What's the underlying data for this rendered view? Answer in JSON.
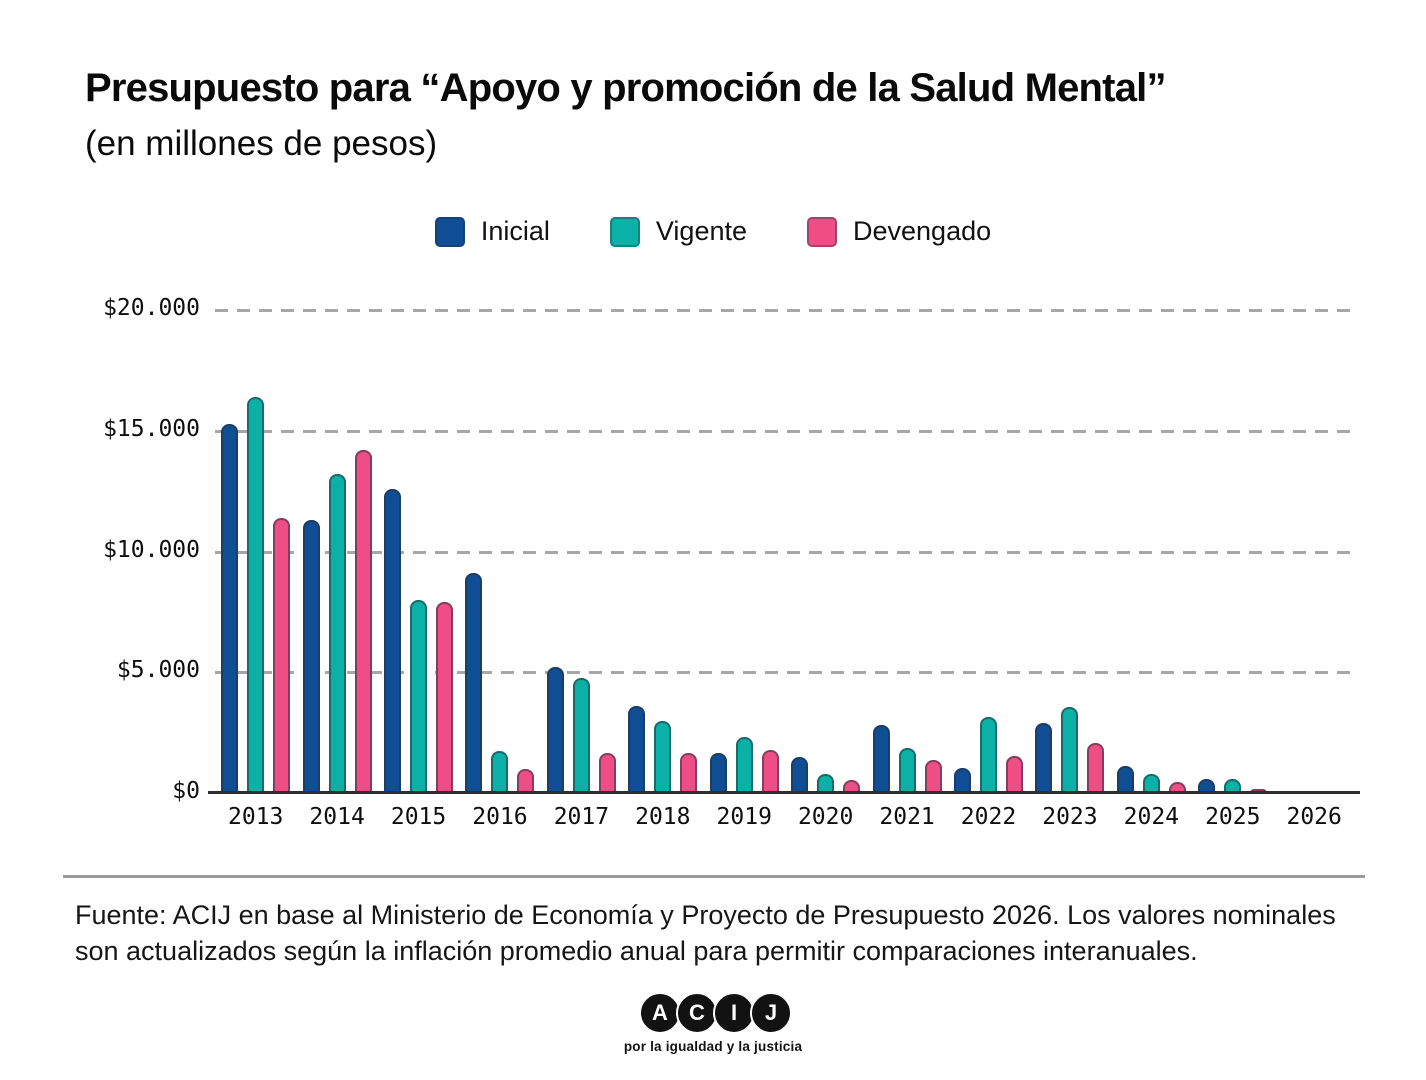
{
  "header": {
    "title": "Presupuesto para “Apoyo y promoción de la Salud Mental”",
    "subtitle": "(en millones de pesos)"
  },
  "chart_data": {
    "type": "bar",
    "title": "Presupuesto para “Apoyo y promoción de la Salud Mental” (en millones de pesos)",
    "categories": [
      "2013",
      "2014",
      "2015",
      "2016",
      "2017",
      "2018",
      "2019",
      "2020",
      "2021",
      "2022",
      "2023",
      "2024",
      "2025",
      "2026"
    ],
    "series": [
      {
        "name": "Inicial",
        "color": "#0f4e95",
        "values": [
          15300,
          11300,
          12600,
          9100,
          5200,
          3600,
          1650,
          1500,
          2800,
          1050,
          2900,
          1100,
          600,
          30
        ]
      },
      {
        "name": "Vigente",
        "color": "#0bb0a6",
        "values": [
          16400,
          13200,
          8000,
          1750,
          4750,
          3000,
          2300,
          800,
          1850,
          3150,
          3550,
          800,
          600,
          80
        ]
      },
      {
        "name": "Devengado",
        "color": "#ef4e84",
        "values": [
          11400,
          14200,
          7900,
          1000,
          1650,
          1650,
          1800,
          530,
          1350,
          1550,
          2050,
          450,
          160,
          40
        ]
      }
    ],
    "ylim": [
      0,
      20000
    ],
    "y_ticks": [
      {
        "label": "$20.000",
        "value": 20000
      },
      {
        "label": "$15.000",
        "value": 15000
      },
      {
        "label": "$10.000",
        "value": 10000
      },
      {
        "label": "$5.000",
        "value": 5000
      },
      {
        "label": "$0",
        "value": 0
      }
    ],
    "grid": "horizontal-dashed",
    "legend_position": "top-center"
  },
  "footer": {
    "source": "Fuente: ACIJ en base al Ministerio de Economía y Proyecto de Presupuesto 2026. Los valores nominales son actualizados según la inflación promedio anual para permitir comparaciones interanuales."
  },
  "logo": {
    "letters": [
      "A",
      "C",
      "I",
      "J"
    ],
    "tagline": "por la igualdad y la justicia"
  }
}
